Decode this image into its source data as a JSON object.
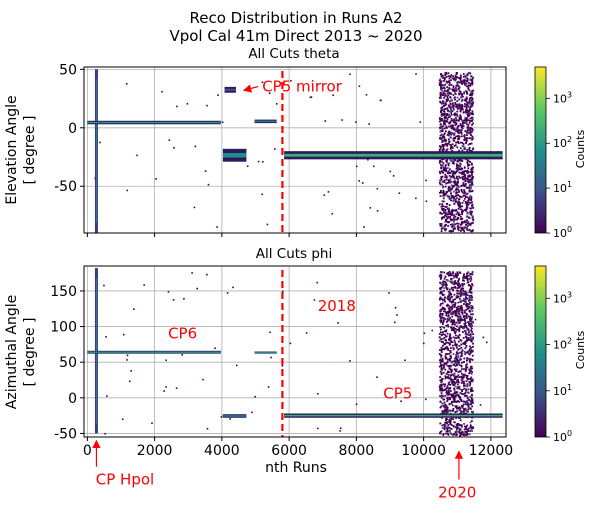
{
  "figure": {
    "title_line1": "Reco Distribution in Runs A2",
    "title_line2": "Vpol Cal 41m Direct 2013 ~ 2020"
  },
  "colorbar": {
    "label": "Counts",
    "scale": "log",
    "range": [
      1,
      5000
    ],
    "ticks": [
      {
        "value": 1,
        "base": "10",
        "exp": "0"
      },
      {
        "value": 10,
        "base": "10",
        "exp": "1"
      },
      {
        "value": 100,
        "base": "10",
        "exp": "2"
      },
      {
        "value": 1000,
        "base": "10",
        "exp": "3"
      }
    ],
    "colormap": [
      "#440154",
      "#3b528b",
      "#21918c",
      "#5ec962",
      "#fde725"
    ]
  },
  "chart_data": [
    {
      "type": "heatmap",
      "title": "All Cuts theta",
      "xlabel": "nth Runs",
      "ylabel_line1": "Elevation Angle",
      "ylabel_line2": "[ degree ]",
      "xlim": [
        -100,
        12450
      ],
      "ylim": [
        -90,
        52
      ],
      "xticks": [
        0,
        2000,
        4000,
        6000,
        8000,
        10000,
        12000
      ],
      "yticks": [
        50,
        0,
        -50
      ],
      "grid": true,
      "bands": [
        {
          "x": [
            0,
            3970
          ],
          "y": [
            3,
            6
          ],
          "count": 80
        },
        {
          "x": [
            4030,
            4730
          ],
          "y": [
            -29,
            -18
          ],
          "count": 60
        },
        {
          "x": [
            4970,
            5630
          ],
          "y": [
            4,
            7
          ],
          "count": 40
        },
        {
          "x": [
            4080,
            4420
          ],
          "y": [
            30,
            35
          ],
          "count": 8
        },
        {
          "x": [
            5850,
            12350
          ],
          "y": [
            -27,
            -20
          ],
          "count": 200
        }
      ],
      "clusters": [
        {
          "x": [
            10450,
            11450
          ],
          "y": [
            -88,
            48
          ],
          "count": 3
        }
      ],
      "vertical_streaks": [
        {
          "x": 270,
          "y": [
            -90,
            50
          ],
          "count": 40
        }
      ],
      "marker_line": {
        "x": 5800,
        "color": "#ff0000",
        "style": "dashed"
      },
      "annotations": [
        {
          "text": "CP5 mirror",
          "x": 5200,
          "y": 31,
          "arrow_to": [
            4650,
            32
          ]
        }
      ]
    },
    {
      "type": "heatmap",
      "title": "All Cuts phi",
      "xlabel": "nth Runs",
      "ylabel_line1": "Azimuthal Angle",
      "ylabel_line2": "[ degree ]",
      "xlim": [
        -100,
        12450
      ],
      "ylim": [
        -55,
        185
      ],
      "xticks": [
        0,
        2000,
        4000,
        6000,
        8000,
        10000,
        12000
      ],
      "yticks": [
        150,
        100,
        50,
        0,
        -50
      ],
      "grid": true,
      "bands": [
        {
          "x": [
            0,
            3970
          ],
          "y": [
            62,
            66
          ],
          "count": 80
        },
        {
          "x": [
            4030,
            4730
          ],
          "y": [
            -28,
            -23
          ],
          "count": 60
        },
        {
          "x": [
            4970,
            5630
          ],
          "y": [
            62,
            65
          ],
          "count": 40
        },
        {
          "x": [
            5850,
            12350
          ],
          "y": [
            -28,
            -22
          ],
          "count": 200
        }
      ],
      "clusters": [
        {
          "x": [
            10450,
            11450
          ],
          "y": [
            -52,
            178
          ],
          "count": 3
        }
      ],
      "vertical_streaks": [
        {
          "x": 270,
          "y": [
            -50,
            182
          ],
          "count": 40
        }
      ],
      "marker_line": {
        "x": 5800,
        "color": "#ff0000",
        "style": "dashed"
      },
      "annotations": [
        {
          "text": "CP6",
          "x": 2400,
          "y": 83
        },
        {
          "text": "2018",
          "x": 6850,
          "y": 122
        },
        {
          "text": "CP5",
          "x": 8800,
          "y": -1
        },
        {
          "text": "CP Hpol",
          "x": 250,
          "y": -122,
          "arrow_to": [
            270,
            -60
          ]
        },
        {
          "text": "2020",
          "x": 11000,
          "y": -140,
          "arrow_to": [
            11050,
            -75
          ]
        }
      ]
    }
  ]
}
